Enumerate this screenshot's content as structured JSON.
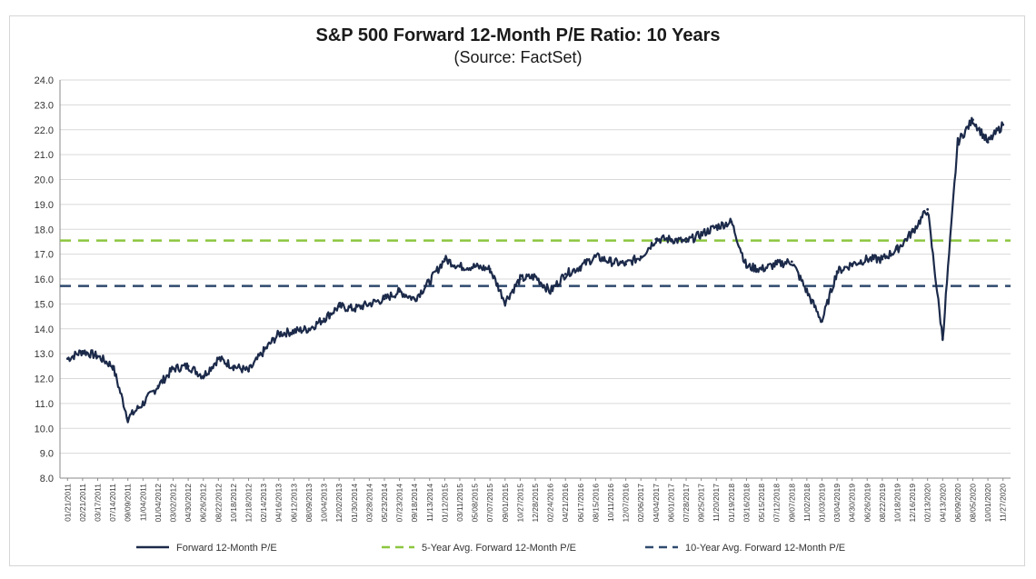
{
  "chart_data": {
    "type": "line",
    "title": "S&P 500 Forward 12-Month P/E Ratio: 10 Years",
    "subtitle": "(Source: FactSet)",
    "ylim": [
      8.0,
      24.0
    ],
    "yticks": [
      "24.0",
      "23.0",
      "22.0",
      "21.0",
      "20.0",
      "19.0",
      "18.0",
      "17.0",
      "16.0",
      "15.0",
      "14.0",
      "13.0",
      "12.0",
      "11.0",
      "10.0",
      "9.0",
      "8.0"
    ],
    "x_labels": [
      "01/21/2011",
      "02/21/2011",
      "03/17/2011",
      "07/14/2011",
      "09/09/2011",
      "11/04/2011",
      "01/04/2012",
      "03/02/2012",
      "04/30/2012",
      "06/26/2012",
      "08/22/2012",
      "10/18/2012",
      "12/18/2012",
      "02/14/2013",
      "04/16/2013",
      "06/12/2013",
      "08/09/2013",
      "10/04/2013",
      "12/02/2013",
      "01/30/2014",
      "03/28/2014",
      "05/23/2014",
      "07/23/2014",
      "09/18/2014",
      "11/13/2014",
      "01/12/2015",
      "03/11/2015",
      "05/08/2015",
      "07/07/2015",
      "09/01/2015",
      "10/27/2015",
      "12/28/2015",
      "02/24/2016",
      "04/21/2016",
      "06/17/2016",
      "08/15/2016",
      "10/11/2016",
      "12/07/2016",
      "02/06/2017",
      "04/04/2017",
      "06/01/2017",
      "07/28/2017",
      "09/25/2017",
      "11/20/2017",
      "01/19/2018",
      "03/16/2018",
      "05/15/2018",
      "07/12/2018",
      "09/07/2018",
      "11/02/2018",
      "01/03/2019",
      "03/04/2019",
      "04/30/2019",
      "06/26/2019",
      "08/22/2019",
      "10/18/2019",
      "12/16/2019",
      "02/13/2020",
      "04/13/2020",
      "06/09/2020",
      "08/05/2020",
      "10/01/2020",
      "11/27/2020"
    ],
    "series": [
      {
        "name": "Forward 12-Month P/E",
        "color": "#1c2a4a",
        "style": "solid",
        "values": [
          12.8,
          13.1,
          12.9,
          12.5,
          10.4,
          11.0,
          11.7,
          12.4,
          12.5,
          12.1,
          12.8,
          12.5,
          12.3,
          13.1,
          13.8,
          13.9,
          14.0,
          14.4,
          14.9,
          14.8,
          15.0,
          15.2,
          15.5,
          15.2,
          15.9,
          16.8,
          16.5,
          16.5,
          16.4,
          15.1,
          16.0,
          16.1,
          15.5,
          16.2,
          16.5,
          16.9,
          16.7,
          16.6,
          16.9,
          17.6,
          17.6,
          17.5,
          17.8,
          18.1,
          18.3,
          16.5,
          16.4,
          16.6,
          16.7,
          15.5,
          14.3,
          16.3,
          16.6,
          16.8,
          16.8,
          17.2,
          17.9,
          18.8,
          13.6,
          21.5,
          22.4,
          21.5,
          22.2
        ]
      },
      {
        "name": "5-Year Avg. Forward 12-Month P/E",
        "color": "#8cc63f",
        "style": "dashed",
        "value": 17.55
      },
      {
        "name": "10-Year Avg. Forward 12-Month P/E",
        "color": "#2f4a6e",
        "style": "dashed",
        "value": 15.72
      }
    ],
    "legend_position": "bottom",
    "grid": true
  }
}
